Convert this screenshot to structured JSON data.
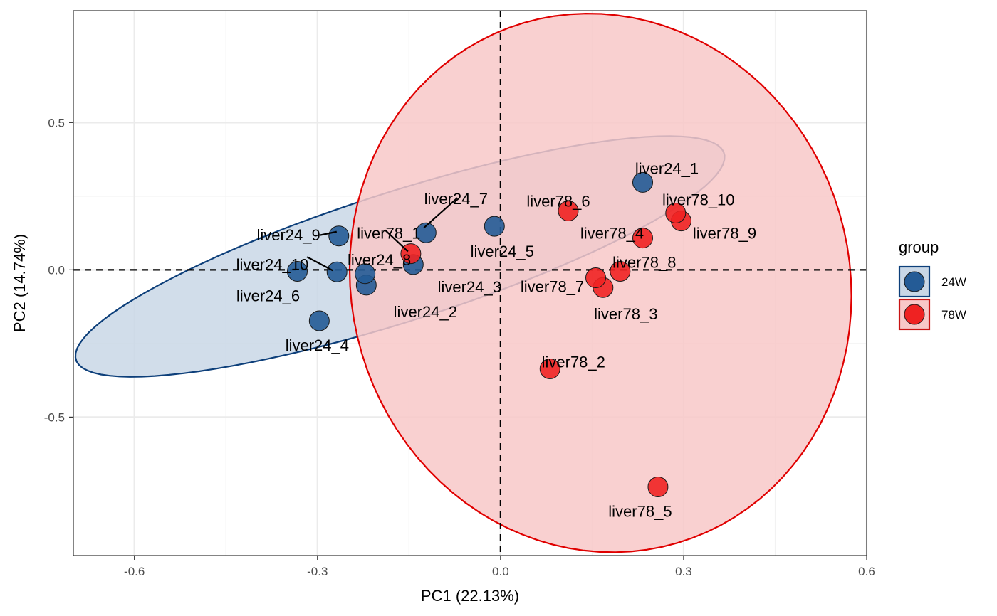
{
  "chart_data": {
    "type": "scatter",
    "xlabel": "PC1 (22.13%)",
    "ylabel": "PC2 (14.74%)",
    "xlim": [
      -0.7,
      0.6
    ],
    "ylim": [
      -0.97,
      0.88
    ],
    "x_ticks": [
      -0.6,
      -0.3,
      0.0,
      0.3,
      0.6
    ],
    "x_tick_labels": [
      "-0.6",
      "-0.3",
      "0.0",
      "0.3",
      "0.6"
    ],
    "y_ticks": [
      0.5,
      0.0,
      -0.5
    ],
    "y_tick_labels": [
      "0.5",
      "0.0",
      "-0.5"
    ],
    "grid": true,
    "reference_lines": [
      {
        "axis": "x",
        "value": 0
      },
      {
        "axis": "y",
        "value": 0
      }
    ],
    "legend": {
      "title": "group",
      "placement": "right",
      "entries": [
        {
          "label": "24W",
          "color": "#245b96",
          "border": "#0d3f7a",
          "fill": "#c9d7e6"
        },
        {
          "label": "78W",
          "color": "#ef2222",
          "border": "#c81414",
          "fill": "#f8c8c8"
        }
      ]
    },
    "series": [
      {
        "name": "24W",
        "color": "#245b96",
        "ellipse": {
          "color": "#0d3f7a",
          "fill": "#c9d7e6"
        },
        "points": [
          {
            "label": "liver24_1",
            "x": 0.233,
            "y": 0.297
          },
          {
            "label": "liver24_2",
            "x": -0.22,
            "y": -0.052
          },
          {
            "label": "liver24_3",
            "x": -0.143,
            "y": 0.018
          },
          {
            "label": "liver24_4",
            "x": -0.297,
            "y": -0.173
          },
          {
            "label": "liver24_5",
            "x": -0.01,
            "y": 0.148
          },
          {
            "label": "liver24_6",
            "x": -0.333,
            "y": -0.005
          },
          {
            "label": "liver24_7",
            "x": -0.122,
            "y": 0.126
          },
          {
            "label": "liver24_8",
            "x": -0.222,
            "y": -0.013
          },
          {
            "label": "liver24_9",
            "x": -0.265,
            "y": 0.115
          },
          {
            "label": "liver24_10",
            "x": -0.268,
            "y": -0.007
          }
        ]
      },
      {
        "name": "78W",
        "color": "#ef2222",
        "ellipse": {
          "color": "#e00000",
          "fill": "#f8c8c8"
        },
        "points": [
          {
            "label": "liver78_1",
            "x": -0.147,
            "y": 0.055
          },
          {
            "label": "liver78_2",
            "x": 0.081,
            "y": -0.336
          },
          {
            "label": "liver78_3",
            "x": 0.168,
            "y": -0.06
          },
          {
            "label": "liver78_4",
            "x": 0.233,
            "y": 0.108
          },
          {
            "label": "liver78_5",
            "x": 0.258,
            "y": -0.737
          },
          {
            "label": "liver78_6",
            "x": 0.111,
            "y": 0.2
          },
          {
            "label": "liver78_7",
            "x": 0.156,
            "y": -0.027
          },
          {
            "label": "liver78_8",
            "x": 0.196,
            "y": -0.005
          },
          {
            "label": "liver78_9",
            "x": 0.296,
            "y": 0.166
          },
          {
            "label": "liver78_10",
            "x": 0.287,
            "y": 0.193
          }
        ]
      }
    ]
  }
}
